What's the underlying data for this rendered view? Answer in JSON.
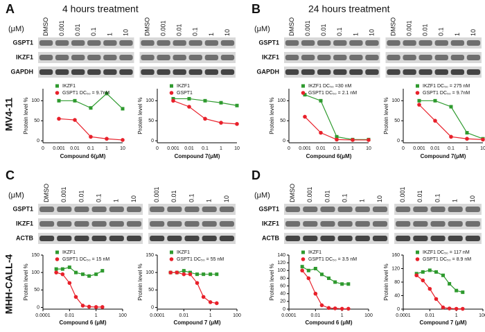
{
  "figure": {
    "panels": [
      {
        "letter": "A",
        "title": "4 hours treatment",
        "unit": "(μM)",
        "lanes": [
          "DMSO",
          "0.001",
          "0.01",
          "0.1",
          "1",
          "10",
          "DMSO",
          "0.001",
          "0.01",
          "0.1",
          "1",
          "10"
        ],
        "rows": [
          "GSPT1",
          "IKZF1",
          "GAPDH"
        ]
      },
      {
        "letter": "B",
        "title": "24 hours treatment",
        "unit": "(μM)",
        "lanes": [
          "DMSO",
          "0.001",
          "0.01",
          "0.1",
          "1",
          "10",
          "DMSO",
          "0.001",
          "0.01",
          "0.1",
          "1",
          "10"
        ],
        "rows": [
          "GSPT1",
          "IKZF1",
          "GAPDH"
        ]
      },
      {
        "letter": "C",
        "unit": "(μM)",
        "lanes": [
          "DMSO",
          "0.001",
          "0.01",
          "0.1",
          "1",
          "10",
          "0.001",
          "0.01",
          "0.1",
          "1",
          "10"
        ],
        "rows": [
          "GSPT1",
          "IKZF1",
          "ACTB"
        ]
      },
      {
        "letter": "D",
        "unit": "(μM)",
        "lanes": [
          "DMSO",
          "0.001",
          "0.01",
          "0.1",
          "1",
          "10",
          "0.001",
          "0.01",
          "0.1",
          "1",
          "10"
        ],
        "rows": [
          "GSPT1",
          "IKZF1",
          "ACTB"
        ]
      }
    ],
    "cell_lines": [
      "MV4-11",
      "MHH-CALL-4"
    ]
  },
  "chart_data": [
    {
      "type": "scatter",
      "xlabel": "Compound 6(μM)",
      "ylabel": "Protein level %",
      "categories": [
        "0",
        "0.001",
        "0.01",
        "0.1",
        "1",
        "10"
      ],
      "ylim": [
        -5,
        130
      ],
      "yticks": [
        0,
        50,
        100
      ],
      "series": [
        {
          "name": "IKZF1",
          "color": "#2e9a2e",
          "values": [
            null,
            100,
            100,
            82,
            118,
            80
          ]
        },
        {
          "name": "GSPT1 DC₅₀ = 9.7nM",
          "color": "#e8202a",
          "values": [
            null,
            55,
            52,
            10,
            5,
            2
          ]
        }
      ]
    },
    {
      "type": "scatter",
      "xlabel": "Compound 7(μM)",
      "ylabel": "Protein level %",
      "categories": [
        "0",
        "0.001",
        "0.01",
        "0.1",
        "1",
        "10"
      ],
      "ylim": [
        -5,
        130
      ],
      "yticks": [
        0,
        50,
        100
      ],
      "series": [
        {
          "name": "IKZF1",
          "color": "#2e9a2e",
          "values": [
            null,
            105,
            105,
            100,
            95,
            88
          ]
        },
        {
          "name": "GSPT1",
          "color": "#e8202a",
          "values": [
            null,
            100,
            85,
            55,
            45,
            42
          ]
        }
      ]
    },
    {
      "type": "scatter",
      "xlabel": "Compound 6(μM)",
      "ylabel": "Protein level %",
      "categories": [
        "0",
        "0.001",
        "0.01",
        "0.1",
        "1",
        "10"
      ],
      "ylim": [
        -5,
        130
      ],
      "yticks": [
        0,
        50,
        100
      ],
      "series": [
        {
          "name": "IKZF1 DC₅₀ =30 nM",
          "color": "#2e9a2e",
          "values": [
            null,
            115,
            100,
            10,
            3,
            3
          ]
        },
        {
          "name": "GSPT1 DC₅₀ = 2.1 nM",
          "color": "#e8202a",
          "values": [
            null,
            60,
            20,
            3,
            2,
            2
          ]
        }
      ]
    },
    {
      "type": "scatter",
      "xlabel": "Compound 7(μM)",
      "ylabel": "Protein level %",
      "categories": [
        "0",
        "0.001",
        "0.01",
        "0.1",
        "1",
        "10"
      ],
      "ylim": [
        -5,
        130
      ],
      "yticks": [
        0,
        50,
        100
      ],
      "series": [
        {
          "name": "IKZF1 DC₅₀ = 275 nM",
          "color": "#2e9a2e",
          "values": [
            null,
            100,
            100,
            85,
            20,
            5
          ]
        },
        {
          "name": "GSPT1 DC₅₀ = 9.7nM",
          "color": "#e8202a",
          "values": [
            null,
            90,
            50,
            10,
            5,
            3
          ]
        }
      ]
    },
    {
      "type": "scatter",
      "xlabel": "Compound 6 (μM)",
      "ylabel": "Protein level %",
      "xscale": "log",
      "x": [
        0.001,
        0.003,
        0.01,
        0.03,
        0.1,
        0.3,
        1,
        3
      ],
      "xlim": [
        0.0001,
        100
      ],
      "xticks": [
        0.0001,
        0.01,
        1,
        100
      ],
      "ylim": [
        -5,
        150
      ],
      "yticks": [
        0,
        50,
        100,
        150
      ],
      "series": [
        {
          "name": "IKZF1",
          "color": "#2e9a2e",
          "values": [
            110,
            110,
            115,
            100,
            95,
            90,
            95,
            105
          ]
        },
        {
          "name": "GSPT1 DC₅₀ = 15 nM",
          "color": "#e8202a",
          "values": [
            100,
            95,
            70,
            30,
            5,
            2,
            1,
            1
          ]
        }
      ]
    },
    {
      "type": "scatter",
      "xlabel": "Compound 7 (μM)",
      "ylabel": "Protein level %",
      "xscale": "log",
      "x": [
        0.001,
        0.003,
        0.01,
        0.03,
        0.1,
        0.3,
        1,
        3
      ],
      "xlim": [
        0.0001,
        100
      ],
      "xticks": [
        0.0001,
        0.01,
        1,
        100
      ],
      "ylim": [
        -5,
        150
      ],
      "yticks": [
        0,
        50,
        100,
        150
      ],
      "series": [
        {
          "name": "IKZF1",
          "color": "#2e9a2e",
          "values": [
            100,
            100,
            105,
            100,
            95,
            95,
            95,
            95
          ]
        },
        {
          "name": "GSPT1 DC₅₀ = 55 nM",
          "color": "#e8202a",
          "values": [
            100,
            100,
            95,
            95,
            70,
            30,
            15,
            12
          ]
        }
      ]
    },
    {
      "type": "scatter",
      "xlabel": "Compound 6 (μM)",
      "ylabel": "Protein level %",
      "xscale": "log",
      "x": [
        0.001,
        0.003,
        0.01,
        0.03,
        0.1,
        0.3,
        1,
        3
      ],
      "xlim": [
        0.0001,
        100
      ],
      "xticks": [
        0.0001,
        0.01,
        1,
        100
      ],
      "ylim": [
        0,
        140
      ],
      "yticks": [
        0,
        20,
        40,
        60,
        80,
        100,
        120,
        140
      ],
      "series": [
        {
          "name": "IKZF1",
          "color": "#2e9a2e",
          "values": [
            110,
            100,
            105,
            90,
            80,
            70,
            65,
            65
          ]
        },
        {
          "name": "GSPT1 DC₅₀ = 3.5 nM",
          "color": "#e8202a",
          "values": [
            100,
            80,
            40,
            10,
            3,
            2,
            1,
            1
          ]
        }
      ]
    },
    {
      "type": "scatter",
      "xlabel": "Compound 7 (μM)",
      "ylabel": "Protein level %",
      "xscale": "log",
      "x": [
        0.001,
        0.003,
        0.01,
        0.03,
        0.1,
        0.3,
        1,
        3
      ],
      "xlim": [
        0.0001,
        100
      ],
      "xticks": [
        0.0001,
        0.01,
        1,
        100
      ],
      "ylim": [
        0,
        160
      ],
      "yticks": [
        0,
        40,
        80,
        120,
        160
      ],
      "series": [
        {
          "name": "IKZF1 DC₅₀ = 117 nM",
          "color": "#2e9a2e",
          "values": [
            105,
            110,
            115,
            110,
            100,
            75,
            55,
            50
          ]
        },
        {
          "name": "GSPT1 DC₅₀ = 8.9 nM",
          "color": "#e8202a",
          "values": [
            100,
            85,
            60,
            30,
            5,
            2,
            1,
            1
          ]
        }
      ]
    }
  ]
}
